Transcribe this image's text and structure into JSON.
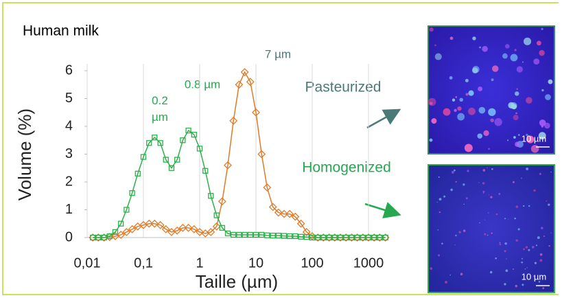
{
  "chart_data": {
    "type": "line",
    "title": "Human milk",
    "y_label": "Volume (%)",
    "x_label": "Taille (µm)",
    "log_x": true,
    "grid": true,
    "xlim": [
      0.01,
      2000
    ],
    "ylim": [
      0,
      6
    ],
    "xticks": [
      {
        "value": 0.01,
        "label": "0,01"
      },
      {
        "value": 0.1,
        "label": "0,1"
      },
      1,
      10,
      100,
      1000
    ],
    "yticks": [
      0,
      1,
      2,
      3,
      4,
      5,
      6
    ],
    "x": [
      0.0126,
      0.0158,
      0.02,
      0.0251,
      0.0316,
      0.0398,
      0.0501,
      0.0631,
      0.0794,
      0.1,
      0.126,
      0.158,
      0.2,
      0.251,
      0.316,
      0.398,
      0.501,
      0.631,
      0.794,
      1,
      1.26,
      1.58,
      2,
      2.51,
      3.16,
      3.98,
      5.01,
      6.31,
      7.94,
      10,
      12.6,
      15.8,
      20,
      25.1,
      31.6,
      39.8,
      50.1,
      63.1,
      79.4,
      100,
      126,
      158,
      200,
      251,
      316,
      398,
      501,
      631,
      794,
      1000,
      1260,
      1580,
      2000
    ],
    "series": [
      {
        "name": "Pasteurized",
        "color": "#e07a27",
        "marker": "diamond",
        "values": [
          0,
          0,
          0,
          0.02,
          0.05,
          0.1,
          0.2,
          0.3,
          0.4,
          0.45,
          0.5,
          0.5,
          0.45,
          0.3,
          0.2,
          0.25,
          0.35,
          0.35,
          0.3,
          0.2,
          0.15,
          0.2,
          0.4,
          1.3,
          2.6,
          4.2,
          5.5,
          5.95,
          5.6,
          4.5,
          3.0,
          1.8,
          1.1,
          0.9,
          0.85,
          0.85,
          0.75,
          0.5,
          0.2,
          0.05,
          0,
          0,
          0,
          0,
          0,
          0,
          0,
          0,
          0,
          0,
          0,
          0,
          0
        ]
      },
      {
        "name": "Homogenized",
        "color": "#2bb04a",
        "marker": "square",
        "values": [
          0,
          0,
          0,
          0.05,
          0.2,
          0.5,
          1.0,
          1.6,
          2.3,
          2.9,
          3.4,
          3.6,
          3.4,
          2.8,
          2.5,
          2.8,
          3.5,
          3.85,
          3.7,
          3.2,
          2.4,
          1.5,
          0.8,
          0.35,
          0.15,
          0.1,
          0.1,
          0.1,
          0.1,
          0.1,
          0.1,
          0.08,
          0.07,
          0.07,
          0.06,
          0.05,
          0.05,
          0.03,
          0.02,
          0,
          0,
          0,
          0,
          0,
          0,
          0,
          0,
          0,
          0,
          0,
          0,
          0,
          0
        ]
      }
    ],
    "annotations": [
      "7 µm",
      "0.8 µm",
      "0.2 µm"
    ],
    "scale_bars": [
      "10 µm",
      "10 µm"
    ]
  }
}
